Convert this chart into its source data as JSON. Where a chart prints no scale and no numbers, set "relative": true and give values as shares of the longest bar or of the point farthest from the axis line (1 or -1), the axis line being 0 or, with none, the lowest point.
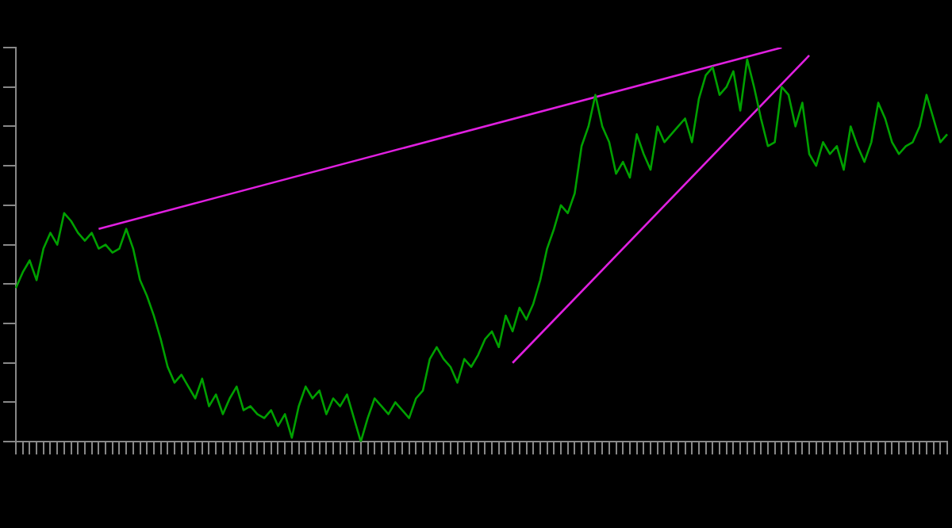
{
  "chart_data": {
    "type": "line",
    "relative": true,
    "marker": "none",
    "line_style": "solid",
    "categories": [
      null,
      null,
      null,
      null,
      null,
      null,
      null,
      null,
      null,
      null,
      null,
      null,
      null,
      null,
      null,
      null,
      null,
      null,
      null,
      null,
      null,
      null,
      null,
      null,
      null,
      null,
      null,
      null,
      null,
      null,
      null,
      null,
      null,
      null,
      null,
      null,
      null,
      null,
      null,
      null,
      null,
      null,
      null,
      null,
      null,
      null,
      null,
      null,
      null,
      null,
      null,
      null,
      null,
      null,
      null,
      null,
      null,
      null,
      null,
      null,
      null,
      null,
      null,
      null,
      null,
      null,
      null,
      null,
      null,
      null,
      null,
      null,
      null,
      null,
      null,
      null,
      null,
      null,
      null,
      null,
      null,
      null,
      null,
      null,
      null,
      null,
      null,
      null,
      null,
      null,
      null,
      null,
      null,
      null,
      null,
      null,
      null,
      null,
      null,
      null,
      null,
      null,
      null,
      null,
      null,
      null,
      null,
      null,
      null,
      null,
      null,
      null,
      null,
      null,
      null,
      null,
      null,
      null,
      null,
      null,
      null,
      null,
      null,
      null,
      null,
      null,
      null,
      null,
      null,
      null,
      null,
      null,
      null,
      null,
      null,
      null
    ],
    "series": [
      {
        "type": "line",
        "color": "#00a000",
        "values": [
          0.39,
          0.43,
          0.46,
          0.41,
          0.49,
          0.53,
          0.5,
          0.58,
          0.56,
          0.53,
          0.51,
          0.53,
          0.49,
          0.5,
          0.48,
          0.49,
          0.54,
          0.49,
          0.41,
          0.37,
          0.32,
          0.26,
          0.19,
          0.15,
          0.17,
          0.14,
          0.11,
          0.16,
          0.09,
          0.12,
          0.07,
          0.11,
          0.14,
          0.08,
          0.09,
          0.07,
          0.06,
          0.08,
          0.04,
          0.07,
          0.01,
          0.09,
          0.14,
          0.11,
          0.13,
          0.07,
          0.11,
          0.09,
          0.12,
          0.06,
          0,
          0.06,
          0.11,
          0.09,
          0.07,
          0.1,
          0.08,
          0.06,
          0.11,
          0.13,
          0.21,
          0.24,
          0.21,
          0.19,
          0.15,
          0.21,
          0.19,
          0.22,
          0.26,
          0.28,
          0.24,
          0.32,
          0.28,
          0.34,
          0.31,
          0.35,
          0.41,
          0.49,
          0.54,
          0.6,
          0.58,
          0.63,
          0.75,
          0.8,
          0.88,
          0.8,
          0.76,
          0.68,
          0.71,
          0.67,
          0.78,
          0.73,
          0.69,
          0.8,
          0.76,
          0.78,
          0.8,
          0.82,
          0.76,
          0.87,
          0.93,
          0.95,
          0.88,
          0.9,
          0.94,
          0.84,
          0.97,
          0.9,
          0.82,
          0.75,
          0.76,
          0.9,
          0.88,
          0.8,
          0.86,
          0.73,
          0.7,
          0.76,
          0.73,
          0.75,
          0.69,
          0.8,
          0.75,
          0.71,
          0.76,
          0.86,
          0.82,
          0.76,
          0.73,
          0.75,
          0.76,
          0.8,
          0.88,
          0.82,
          0.76,
          0.78
        ]
      },
      {
        "type": "line",
        "color": "#e020e0",
        "values": [
          null,
          null,
          null,
          null,
          null,
          null,
          null,
          null,
          null,
          null,
          null,
          null,
          0.54,
          null,
          null,
          null,
          null,
          null,
          null,
          null,
          null,
          null,
          null,
          null,
          null,
          null,
          null,
          null,
          null,
          null,
          null,
          null,
          null,
          null,
          null,
          null,
          null,
          null,
          null,
          null,
          null,
          null,
          null,
          null,
          null,
          null,
          null,
          null,
          null,
          null,
          null,
          null,
          null,
          null,
          null,
          null,
          null,
          null,
          null,
          null,
          null,
          null,
          null,
          null,
          null,
          null,
          null,
          null,
          null,
          null,
          null,
          null,
          null,
          null,
          null,
          null,
          null,
          null,
          null,
          null,
          null,
          null,
          null,
          null,
          null,
          null,
          null,
          null,
          null,
          null,
          null,
          null,
          null,
          null,
          null,
          null,
          null,
          null,
          null,
          null,
          null,
          null,
          null,
          null,
          null,
          null,
          null,
          null,
          null,
          null,
          null,
          1.0,
          null,
          null,
          null,
          null,
          null,
          null,
          null,
          null,
          null,
          null,
          null,
          null,
          null,
          null,
          null,
          null,
          null,
          null,
          null,
          null,
          null,
          null,
          null,
          null
        ]
      },
      {
        "type": "line",
        "color": "#e020e0",
        "values": [
          null,
          null,
          null,
          null,
          null,
          null,
          null,
          null,
          null,
          null,
          null,
          null,
          null,
          null,
          null,
          null,
          null,
          null,
          null,
          null,
          null,
          null,
          null,
          null,
          null,
          null,
          null,
          null,
          null,
          null,
          null,
          null,
          null,
          null,
          null,
          null,
          null,
          null,
          null,
          null,
          null,
          null,
          null,
          null,
          null,
          null,
          null,
          null,
          null,
          null,
          null,
          null,
          null,
          null,
          null,
          null,
          null,
          null,
          null,
          null,
          null,
          null,
          null,
          null,
          null,
          null,
          null,
          null,
          null,
          null,
          null,
          null,
          0.2,
          null,
          null,
          null,
          null,
          null,
          null,
          null,
          null,
          null,
          null,
          null,
          null,
          null,
          null,
          null,
          null,
          null,
          null,
          null,
          null,
          null,
          null,
          null,
          null,
          null,
          null,
          null,
          null,
          null,
          null,
          null,
          null,
          null,
          null,
          null,
          null,
          null,
          null,
          null,
          null,
          null,
          null,
          0.98,
          null,
          null,
          null,
          null,
          null,
          null,
          null,
          null,
          null,
          null,
          null,
          null,
          null,
          null,
          null,
          null,
          null,
          null,
          null,
          null
        ]
      }
    ]
  }
}
